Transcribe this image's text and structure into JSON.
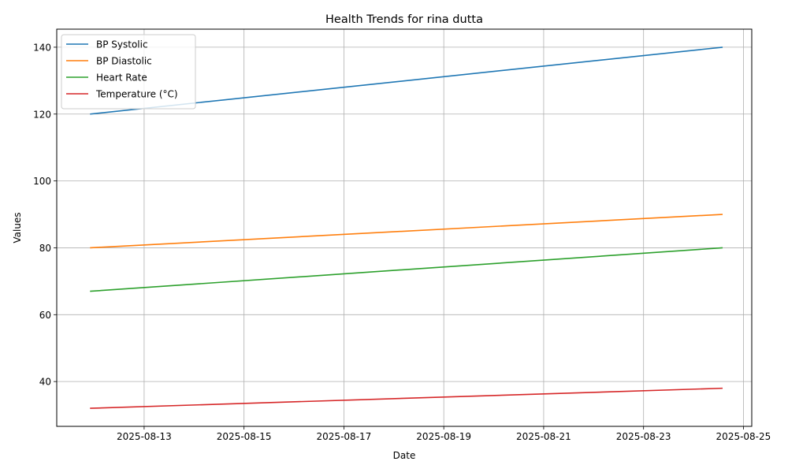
{
  "chart_data": {
    "type": "line",
    "title": "Health Trends for rina dutta",
    "xlabel": "Date",
    "ylabel": "Values",
    "x_range": [
      "2025-08-11T06:00",
      "2025-08-25T04:00"
    ],
    "ylim": [
      26.6,
      145.4
    ],
    "x_ticks": [
      "2025-08-13",
      "2025-08-15",
      "2025-08-17",
      "2025-08-19",
      "2025-08-21",
      "2025-08-23",
      "2025-08-25"
    ],
    "y_ticks": [
      40,
      60,
      80,
      100,
      120,
      140
    ],
    "grid": true,
    "legend_position": "upper left",
    "x": [
      "2025-08-11T22:00",
      "2025-08-24T14:00"
    ],
    "series": [
      {
        "name": "BP Systolic",
        "color": "#1f77b4",
        "values": [
          120,
          140
        ]
      },
      {
        "name": "BP Diastolic",
        "color": "#ff7f0e",
        "values": [
          80,
          90
        ]
      },
      {
        "name": "Heart Rate",
        "color": "#2ca02c",
        "values": [
          67,
          80
        ]
      },
      {
        "name": "Temperature (°C)",
        "color": "#d62728",
        "values": [
          32,
          38
        ]
      }
    ]
  }
}
